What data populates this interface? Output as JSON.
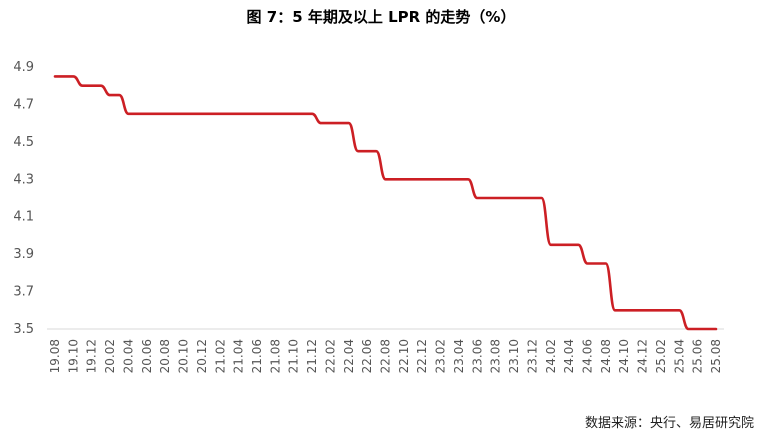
{
  "chart_data": {
    "type": "line",
    "title": "图 7：5 年期及以上 LPR 的走势（%）",
    "source": "数据来源：央行、易居研究院",
    "ylim": [
      3.5,
      4.9
    ],
    "yticks": [
      "4.9",
      "4.7",
      "4.5",
      "4.3",
      "4.1",
      "3.9",
      "3.7",
      "3.5"
    ],
    "xticks": [
      "19.08",
      "19.10",
      "19.12",
      "20.02",
      "20.04",
      "20.06",
      "20.08",
      "20.10",
      "20.12",
      "21.02",
      "21.04",
      "21.06",
      "21.08",
      "21.10",
      "21.12",
      "22.02",
      "22.04",
      "22.06",
      "22.08",
      "22.10",
      "22.12",
      "23.02",
      "23.04",
      "23.06",
      "23.08",
      "23.10",
      "23.12",
      "24.02",
      "24.04",
      "24.06",
      "24.08",
      "24.10",
      "24.12",
      "25.02",
      "25.04",
      "25.06",
      "25.08"
    ],
    "months": [
      "19.08",
      "19.09",
      "19.10",
      "19.11",
      "19.12",
      "20.01",
      "20.02",
      "20.03",
      "20.04",
      "20.05",
      "20.06",
      "20.07",
      "20.08",
      "20.09",
      "20.10",
      "20.11",
      "20.12",
      "21.01",
      "21.02",
      "21.03",
      "21.04",
      "21.05",
      "21.06",
      "21.07",
      "21.08",
      "21.09",
      "21.10",
      "21.11",
      "21.12",
      "22.01",
      "22.02",
      "22.03",
      "22.04",
      "22.05",
      "22.06",
      "22.07",
      "22.08",
      "22.09",
      "22.10",
      "22.11",
      "22.12",
      "23.01",
      "23.02",
      "23.03",
      "23.04",
      "23.05",
      "23.06",
      "23.07",
      "23.08",
      "23.09",
      "23.10",
      "23.11",
      "23.12",
      "24.01",
      "24.02",
      "24.03",
      "24.04",
      "24.05",
      "24.06",
      "24.07",
      "24.08",
      "24.09",
      "24.10",
      "24.11",
      "24.12",
      "25.01",
      "25.02",
      "25.03",
      "25.04",
      "25.05",
      "25.06",
      "25.07",
      "25.08"
    ],
    "series": [
      {
        "color": "#cc1f24",
        "values": [
          4.85,
          4.85,
          4.85,
          4.8,
          4.8,
          4.8,
          4.75,
          4.75,
          4.65,
          4.65,
          4.65,
          4.65,
          4.65,
          4.65,
          4.65,
          4.65,
          4.65,
          4.65,
          4.65,
          4.65,
          4.65,
          4.65,
          4.65,
          4.65,
          4.65,
          4.65,
          4.65,
          4.65,
          4.65,
          4.6,
          4.6,
          4.6,
          4.6,
          4.45,
          4.45,
          4.45,
          4.3,
          4.3,
          4.3,
          4.3,
          4.3,
          4.3,
          4.3,
          4.3,
          4.3,
          4.3,
          4.2,
          4.2,
          4.2,
          4.2,
          4.2,
          4.2,
          4.2,
          4.2,
          3.95,
          3.95,
          3.95,
          3.95,
          3.85,
          3.85,
          3.85,
          3.6,
          3.6,
          3.6,
          3.6,
          3.6,
          3.6,
          3.6,
          3.6,
          3.5,
          3.5,
          3.5,
          3.5
        ]
      }
    ],
    "grid": false,
    "legend": "none"
  }
}
